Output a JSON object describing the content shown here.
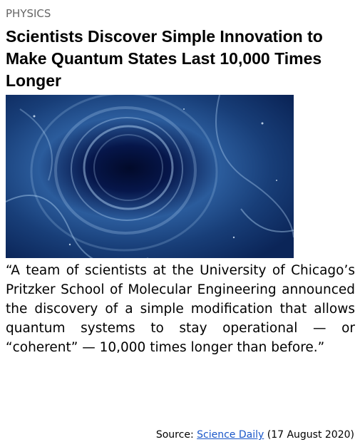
{
  "category": "PHYSICS",
  "title": "Scientists Discover Simple Innovation to Make Quantum States Last 10,000 Times Longer",
  "quote": "“A team of scientists at the University of Chicago’s Pritzker School of Molecular Engineering announced the discovery of a simple modification that allows quantum systems to stay operational — or “coherent” — 10,000 times longer than before.”",
  "source": {
    "prefix": "Source:",
    "link": "Science Daily",
    "date": "(17 August 2020)"
  }
}
